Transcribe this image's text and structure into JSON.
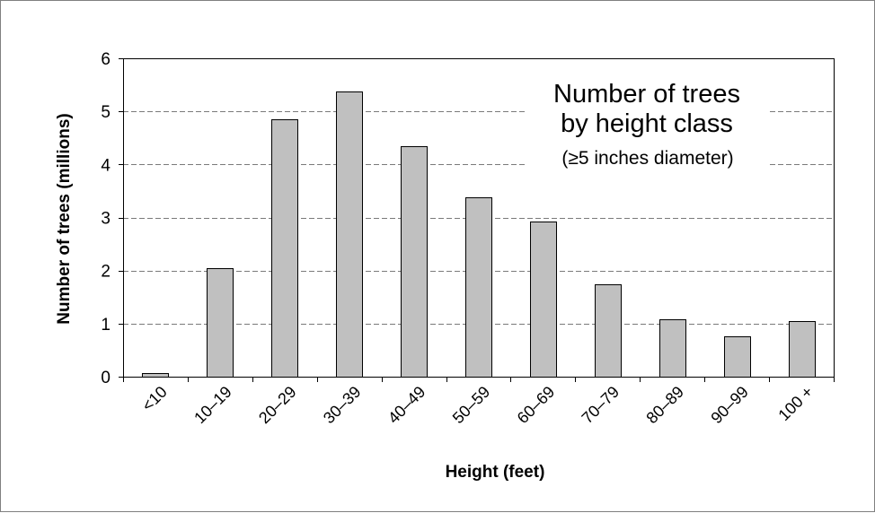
{
  "chart_data": {
    "type": "bar",
    "categories": [
      "<10",
      "10–19",
      "20–29",
      "30–39",
      "40–49",
      "50–59",
      "60–69",
      "70–79",
      "80–89",
      "90–99",
      "100 +"
    ],
    "values": [
      0.07,
      2.05,
      4.85,
      5.38,
      4.34,
      3.38,
      2.93,
      1.74,
      1.09,
      0.76,
      1.05
    ],
    "yticks": [
      "0",
      "1",
      "2",
      "3",
      "4",
      "5",
      "6"
    ],
    "ylim": [
      0,
      6
    ],
    "xlabel": "Height (feet)",
    "ylabel": "Number of trees (millions)",
    "annotation": {
      "line1": "Number of trees",
      "line2": "by height class",
      "line3": "(≥5 inches diameter)"
    },
    "grid": "horizontal dashed",
    "colors": {
      "bar_fill": "#c0c0c0",
      "bar_edge": "#000000",
      "grid": "#7a7a7a"
    }
  }
}
